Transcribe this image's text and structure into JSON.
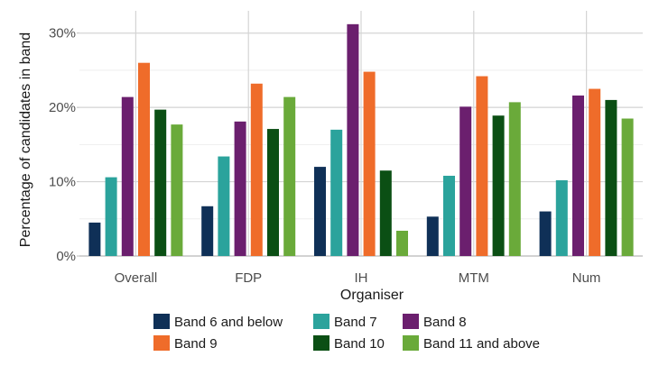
{
  "chart_data": {
    "type": "bar",
    "xlabel": "Organiser",
    "ylabel": "Percentage of candidates in band",
    "categories": [
      "Overall",
      "FDP",
      "IH",
      "MTM",
      "Num"
    ],
    "ylim": [
      0,
      33
    ],
    "yticks": [
      0,
      10,
      20,
      30
    ],
    "ytick_labels": [
      "0%",
      "10%",
      "20%",
      "30%"
    ],
    "grid": true,
    "legend_position": "bottom",
    "series": [
      {
        "name": "Band 6 and below",
        "color": "#0f3057",
        "values": [
          4.5,
          6.7,
          12.0,
          5.3,
          6.0
        ]
      },
      {
        "name": "Band 7",
        "color": "#2ba39c",
        "values": [
          10.6,
          13.4,
          17.0,
          10.8,
          10.2
        ]
      },
      {
        "name": "Band 8",
        "color": "#6b1f6e",
        "values": [
          21.4,
          18.1,
          31.2,
          20.1,
          21.6
        ]
      },
      {
        "name": "Band 9",
        "color": "#ef6c2a",
        "values": [
          26.0,
          23.2,
          24.8,
          24.2,
          22.5
        ]
      },
      {
        "name": "Band 10",
        "color": "#0b4f14",
        "values": [
          19.7,
          17.1,
          11.5,
          18.9,
          21.0
        ]
      },
      {
        "name": "Band 11 and above",
        "color": "#6aaa3a",
        "values": [
          17.7,
          21.4,
          3.4,
          20.7,
          18.5
        ]
      }
    ]
  }
}
